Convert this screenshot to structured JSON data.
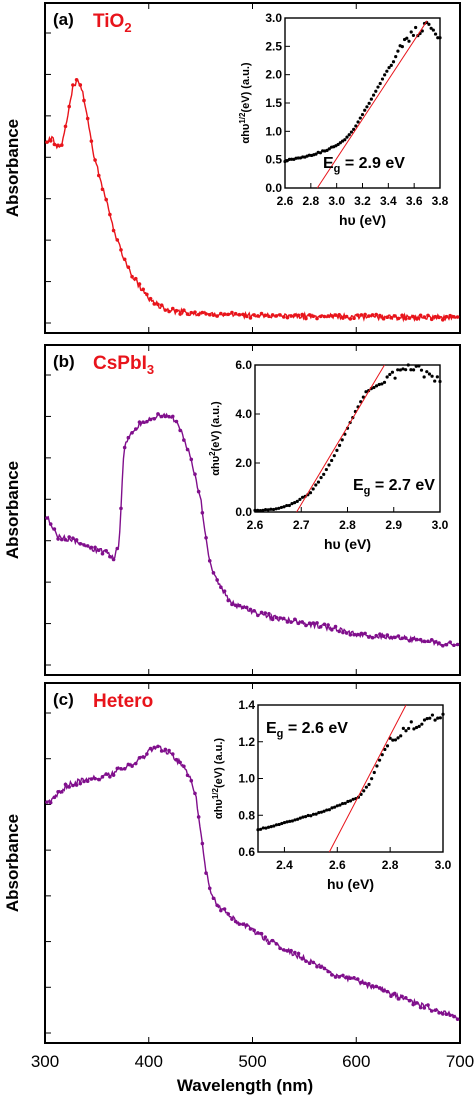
{
  "figure": {
    "xlabel": "Wavelength (nm)"
  },
  "chart_data": [
    {
      "type": "line",
      "panel": "(a)",
      "title": "TiO₂",
      "title_base": "TiO",
      "title_sub": "2",
      "ylabel": "Absorbance",
      "xlabel": "Wavelength (nm)",
      "xlim": [
        300,
        700
      ],
      "ylim": [
        0,
        1.0
      ],
      "grid": false,
      "color": "#e8141b",
      "series": [
        {
          "x": [
            300,
            305,
            310,
            315,
            320,
            325,
            330,
            335,
            340,
            345,
            350,
            355,
            360,
            365,
            370,
            375,
            380,
            385,
            390,
            395,
            400,
            410,
            420,
            430,
            440,
            450,
            470,
            500,
            550,
            600,
            650,
            700
          ],
          "values": [
            0.65,
            0.66,
            0.63,
            0.64,
            0.74,
            0.84,
            0.87,
            0.82,
            0.72,
            0.61,
            0.54,
            0.47,
            0.41,
            0.33,
            0.28,
            0.23,
            0.19,
            0.16,
            0.13,
            0.105,
            0.085,
            0.06,
            0.045,
            0.04,
            0.035,
            0.033,
            0.03,
            0.027,
            0.025,
            0.022,
            0.02,
            0.02
          ]
        }
      ],
      "inset": {
        "type": "scatter",
        "xlabel": "hυ (eV)",
        "ylabel": "αhυ ¹ᐟ²(eV) (a.u.)",
        "ylabel_parts": {
          "base": "αhυ",
          "sup": "1/2",
          "rest": "(eV) (a.u.)"
        },
        "xlim": [
          2.6,
          3.8
        ],
        "ylim": [
          0.0,
          3.0
        ],
        "xticks": [
          "2.6",
          "2.8",
          "3.0",
          "3.2",
          "3.4",
          "3.6",
          "3.8"
        ],
        "yticks": [
          "0.0",
          "0.5",
          "1.0",
          "1.5",
          "2.0",
          "2.5",
          "3.0"
        ],
        "annotation": "E",
        "annotation_sub": "g",
        "annotation_value": " = 2.9 eV",
        "x": [
          2.6,
          2.7,
          2.8,
          2.9,
          3.0,
          3.05,
          3.1,
          3.15,
          3.2,
          3.25,
          3.3,
          3.35,
          3.4,
          3.45,
          3.5,
          3.55,
          3.6,
          3.65,
          3.7,
          3.75,
          3.8
        ],
        "values": [
          0.48,
          0.53,
          0.58,
          0.65,
          0.75,
          0.83,
          0.95,
          1.1,
          1.3,
          1.5,
          1.7,
          1.9,
          2.1,
          2.25,
          2.5,
          2.6,
          2.8,
          2.65,
          2.95,
          2.75,
          2.6
        ],
        "fit": {
          "x": [
            2.85,
            3.7
          ],
          "y": [
            0.0,
            2.95
          ]
        }
      }
    },
    {
      "type": "line",
      "panel": "(b)",
      "title": "CsPbI₃",
      "title_base": "CsPbI",
      "title_sub": "3",
      "ylabel": "Absorbance",
      "xlabel": "Wavelength (nm)",
      "xlim": [
        300,
        700
      ],
      "ylim": [
        0,
        1.0
      ],
      "grid": false,
      "color": "#800f8c",
      "series": [
        {
          "x": [
            300,
            310,
            320,
            330,
            340,
            350,
            360,
            365,
            370,
            375,
            380,
            390,
            400,
            410,
            420,
            425,
            430,
            440,
            450,
            455,
            460,
            470,
            480,
            500,
            520,
            550,
            580,
            600,
            640,
            680,
            700
          ],
          "values": [
            0.53,
            0.46,
            0.45,
            0.44,
            0.42,
            0.41,
            0.4,
            0.38,
            0.43,
            0.77,
            0.82,
            0.86,
            0.88,
            0.89,
            0.89,
            0.87,
            0.84,
            0.74,
            0.58,
            0.44,
            0.34,
            0.27,
            0.22,
            0.19,
            0.17,
            0.15,
            0.13,
            0.11,
            0.1,
            0.08,
            0.07
          ]
        }
      ],
      "inset": {
        "type": "scatter",
        "xlabel": "hυ (eV)",
        "ylabel_parts": {
          "base": "αhυ",
          "sup": "2",
          "rest": "(eV) (a.u.)"
        },
        "xlim": [
          2.6,
          3.0
        ],
        "ylim": [
          0.0,
          6.0
        ],
        "xticks": [
          "2.6",
          "2.7",
          "2.8",
          "2.9",
          "3.0"
        ],
        "yticks": [
          "0.0",
          "2.0",
          "4.0",
          "6.0"
        ],
        "annotation": "E",
        "annotation_sub": "g",
        "annotation_value": " = 2.7 eV",
        "x": [
          2.6,
          2.62,
          2.64,
          2.66,
          2.68,
          2.7,
          2.72,
          2.74,
          2.76,
          2.78,
          2.8,
          2.82,
          2.84,
          2.86,
          2.88,
          2.9,
          2.92,
          2.94,
          2.96,
          2.98,
          3.0
        ],
        "values": [
          0.05,
          0.08,
          0.12,
          0.2,
          0.32,
          0.55,
          0.8,
          1.3,
          1.9,
          2.6,
          3.4,
          4.2,
          4.9,
          5.1,
          5.3,
          5.6,
          5.8,
          6.0,
          5.7,
          5.5,
          5.3
        ],
        "fit": {
          "x": [
            2.69,
            2.88
          ],
          "y": [
            0.0,
            6.0
          ]
        }
      }
    },
    {
      "type": "line",
      "panel": "(c)",
      "title": "Hetero",
      "ylabel": "Absorbance",
      "xlabel": "Wavelength (nm)",
      "xlim": [
        300,
        700
      ],
      "ylim": [
        0,
        1.0
      ],
      "xticks": [
        "300",
        "400",
        "500",
        "600",
        "700"
      ],
      "grid": false,
      "color": "#800f8c",
      "series": [
        {
          "x": [
            300,
            310,
            320,
            330,
            340,
            350,
            360,
            370,
            380,
            390,
            400,
            410,
            420,
            430,
            440,
            445,
            450,
            455,
            460,
            470,
            480,
            500,
            520,
            550,
            580,
            600,
            640,
            680,
            700
          ],
          "values": [
            0.74,
            0.77,
            0.8,
            0.81,
            0.82,
            0.82,
            0.83,
            0.85,
            0.86,
            0.88,
            0.91,
            0.92,
            0.9,
            0.87,
            0.82,
            0.76,
            0.64,
            0.52,
            0.44,
            0.4,
            0.37,
            0.33,
            0.29,
            0.24,
            0.19,
            0.17,
            0.12,
            0.07,
            0.05
          ]
        }
      ],
      "inset": {
        "type": "scatter",
        "xlabel": "hυ (eV)",
        "ylabel_parts": {
          "base": "αhυ",
          "sup": "1/2",
          "rest": "(eV) (a.u.)"
        },
        "xlim": [
          2.3,
          3.0
        ],
        "ylim": [
          0.6,
          1.4
        ],
        "xticks": [
          "2.4",
          "2.6",
          "2.8",
          "3.0"
        ],
        "yticks": [
          "0.6",
          "0.8",
          "1.0",
          "1.2",
          "1.4"
        ],
        "annotation": "E",
        "annotation_sub": "g",
        "annotation_value": " = 2.6 eV",
        "x": [
          2.3,
          2.35,
          2.4,
          2.45,
          2.5,
          2.55,
          2.6,
          2.65,
          2.68,
          2.7,
          2.72,
          2.74,
          2.76,
          2.78,
          2.8,
          2.82,
          2.84,
          2.86,
          2.9,
          2.95,
          3.0
        ],
        "values": [
          0.72,
          0.74,
          0.76,
          0.78,
          0.8,
          0.82,
          0.85,
          0.88,
          0.9,
          0.93,
          0.97,
          1.03,
          1.1,
          1.16,
          1.2,
          1.22,
          1.25,
          1.27,
          1.3,
          1.32,
          1.35
        ],
        "fit": {
          "x": [
            2.57,
            2.86
          ],
          "y": [
            0.6,
            1.4
          ]
        }
      }
    }
  ]
}
